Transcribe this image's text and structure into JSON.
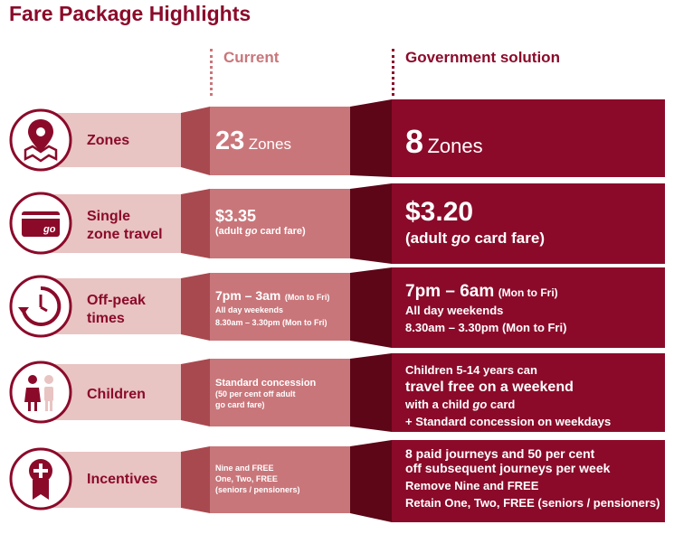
{
  "title": "Fare Package Highlights",
  "columns": {
    "current": "Current",
    "government": "Government solution"
  },
  "colors": {
    "dark": "#8b0a2a",
    "mid": "#c9767a",
    "light": "#e8c4c3",
    "shadow_dark": "#5c0618",
    "shadow_mid": "#a8494f"
  },
  "rows": [
    {
      "icon": "map-pin-icon",
      "label": "Zones",
      "current": {
        "num": "23",
        "unit": "Zones"
      },
      "government": {
        "num": "8",
        "unit": "Zones"
      }
    },
    {
      "icon": "go-card-icon",
      "label_1": "Single",
      "label_2": "zone travel",
      "current": {
        "price": "$3.35",
        "note_pre": "(adult ",
        "note_em": "go",
        "note_post": " card fare)"
      },
      "government": {
        "price": "$3.20",
        "note_pre": "(adult ",
        "note_em": "go",
        "note_post": " card fare)"
      }
    },
    {
      "icon": "clock-icon",
      "label_1": "Off-peak",
      "label_2": "times",
      "current": {
        "time": "7pm – 3am",
        "days": "(Mon to Fri)",
        "line2": "All day weekends",
        "line3": "8.30am – 3.30pm (Mon to Fri)"
      },
      "government": {
        "time": "7pm – 6am",
        "days": "(Mon to Fri)",
        "line2": "All day weekends",
        "line3": "8.30am – 3.30pm (Mon to Fri)"
      }
    },
    {
      "icon": "children-icon",
      "label": "Children",
      "current": {
        "line1": "Standard concession",
        "line2": "(50 per cent off adult",
        "line3": "go card fare)"
      },
      "government": {
        "line1": "Children 5-14 years can",
        "line2": "travel free on a weekend",
        "line3_pre": "with a child ",
        "line3_em": "go",
        "line3_post": " card",
        "line4": "+ Standard concession on weekdays"
      }
    },
    {
      "icon": "award-ribbon-icon",
      "label": "Incentives",
      "current": {
        "line1": "Nine and FREE",
        "line2": "One, Two, FREE",
        "line3": "(seniors / pensioners)"
      },
      "government": {
        "line1": "8 paid journeys and 50 per cent",
        "line2": "off subsequent journeys per week",
        "line3": "Remove Nine and FREE",
        "line4": "Retain One, Two, FREE (seniors / pensioners)"
      }
    }
  ]
}
